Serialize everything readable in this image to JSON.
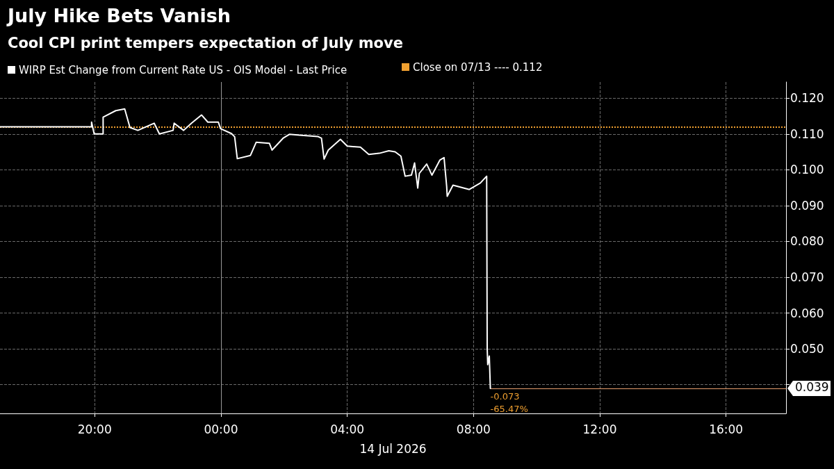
{
  "chart_data": {
    "type": "line",
    "title": "July Hike Bets Vanish",
    "subtitle": "Cool CPI print tempers expectation of July move",
    "xlabel": "14 Jul 2026",
    "x": [
      "2026-07-13T17:00",
      "2026-07-13T19:54",
      "2026-07-13T19:54",
      "2026-07-13T19:59",
      "2026-07-13T20:16",
      "2026-07-13T20:16",
      "2026-07-13T20:40",
      "2026-07-13T20:57",
      "2026-07-13T21:07",
      "2026-07-13T21:22",
      "2026-07-13T21:53",
      "2026-07-13T22:03",
      "2026-07-13T22:29",
      "2026-07-13T22:31",
      "2026-07-13T22:49",
      "2026-07-13T23:04",
      "2026-07-13T23:23",
      "2026-07-13T23:35",
      "2026-07-13T23:55",
      "2026-07-13T23:59",
      "2026-07-14T00:20",
      "2026-07-14T00:26",
      "2026-07-14T00:31",
      "2026-07-14T00:56",
      "2026-07-14T01:07",
      "2026-07-14T01:32",
      "2026-07-14T01:37",
      "2026-07-14T01:58",
      "2026-07-14T02:10",
      "2026-07-14T02:33",
      "2026-07-14T03:04",
      "2026-07-14T03:11",
      "2026-07-14T03:16",
      "2026-07-14T03:24",
      "2026-07-14T03:47",
      "2026-07-14T04:00",
      "2026-07-14T04:25",
      "2026-07-14T04:41",
      "2026-07-14T05:01",
      "2026-07-14T05:19",
      "2026-07-14T05:31",
      "2026-07-14T05:42",
      "2026-07-14T05:50",
      "2026-07-14T06:02",
      "2026-07-14T06:08",
      "2026-07-14T06:14",
      "2026-07-14T06:17",
      "2026-07-14T06:31",
      "2026-07-14T06:41",
      "2026-07-14T06:56",
      "2026-07-14T07:04",
      "2026-07-14T07:09",
      "2026-07-14T07:10",
      "2026-07-14T07:21",
      "2026-07-14T07:52",
      "2026-07-14T08:13",
      "2026-07-14T08:25",
      "2026-07-14T08:26",
      "2026-07-14T08:27",
      "2026-07-14T08:30",
      "2026-07-14T08:32"
    ],
    "series": [
      {
        "name": "WIRP Est Change from Current Rate US - OIS Model - Last Price",
        "color": "#ffffff",
        "values": [
          0.112,
          0.112,
          0.1133,
          0.11,
          0.11,
          0.1147,
          0.1165,
          0.117,
          0.1118,
          0.111,
          0.113,
          0.11,
          0.111,
          0.113,
          0.111,
          0.113,
          0.1153,
          0.1133,
          0.1133,
          0.1115,
          0.1101,
          0.1092,
          0.1031,
          0.104,
          0.1077,
          0.1074,
          0.1055,
          0.1088,
          0.1099,
          0.1096,
          0.1093,
          0.1088,
          0.103,
          0.1055,
          0.1085,
          0.1066,
          0.1063,
          0.1043,
          0.1046,
          0.1053,
          0.105,
          0.1038,
          0.0982,
          0.0985,
          0.1019,
          0.0949,
          0.099,
          0.1016,
          0.0985,
          0.1027,
          0.1034,
          0.0953,
          0.0926,
          0.0957,
          0.0945,
          0.0963,
          0.0982,
          0.0501,
          0.0456,
          0.048,
          0.039
        ],
        "value_labels": [
          null,
          null,
          null,
          null,
          null,
          null,
          null,
          null,
          null,
          null,
          null,
          null,
          null,
          null,
          null,
          null,
          null,
          null,
          null,
          null,
          null,
          null,
          null,
          null,
          null,
          null,
          null,
          null,
          null,
          null,
          null,
          null,
          null,
          null,
          null,
          null,
          null,
          null,
          null,
          null,
          null,
          null,
          null,
          null,
          null,
          null,
          null,
          null,
          null,
          null,
          null,
          null,
          null,
          null,
          null,
          null,
          null,
          null,
          null,
          null,
          "0.039"
        ]
      }
    ],
    "xlim": [
      "2026-07-13T17:00",
      "2026-07-14T17:54"
    ],
    "xticks": [
      {
        "value": "2026-07-13T20:00",
        "label": "20:00"
      },
      {
        "value": "2026-07-14T00:00",
        "label": "00:00"
      },
      {
        "value": "2026-07-14T04:00",
        "label": "04:00"
      },
      {
        "value": "2026-07-14T08:00",
        "label": "08:00"
      },
      {
        "value": "2026-07-14T12:00",
        "label": "12:00"
      },
      {
        "value": "2026-07-14T16:00",
        "label": "16:00"
      }
    ],
    "ylim": [
      0.032,
      0.1245
    ],
    "yticks": [
      {
        "value": 0.04,
        "label": null
      },
      {
        "value": 0.05,
        "label": "0.050"
      },
      {
        "value": 0.06,
        "label": "0.060"
      },
      {
        "value": 0.07,
        "label": "0.070"
      },
      {
        "value": 0.08,
        "label": "0.080"
      },
      {
        "value": 0.09,
        "label": "0.090"
      },
      {
        "value": 0.1,
        "label": "0.100"
      },
      {
        "value": 0.11,
        "label": "0.110"
      },
      {
        "value": 0.12,
        "label": "0.120"
      }
    ],
    "ref_lines": [
      {
        "axis": "y",
        "value": 0.112,
        "label": "Close on 07/13 ---- 0.112",
        "color": "#f0a030",
        "line_style": "dotted"
      },
      {
        "axis": "x",
        "value": "2026-07-14T00:00",
        "color": "#9a9a9a",
        "line_style": "solid"
      }
    ],
    "annotations": [
      {
        "text": "-0.073",
        "x": "2026-07-14T08:32",
        "y": 0.039
      },
      {
        "text": "-65.47%",
        "x": "2026-07-14T08:32",
        "y": 0.039
      }
    ],
    "grid": true,
    "legend": "top left",
    "marker": "none",
    "line_style": "solid"
  }
}
